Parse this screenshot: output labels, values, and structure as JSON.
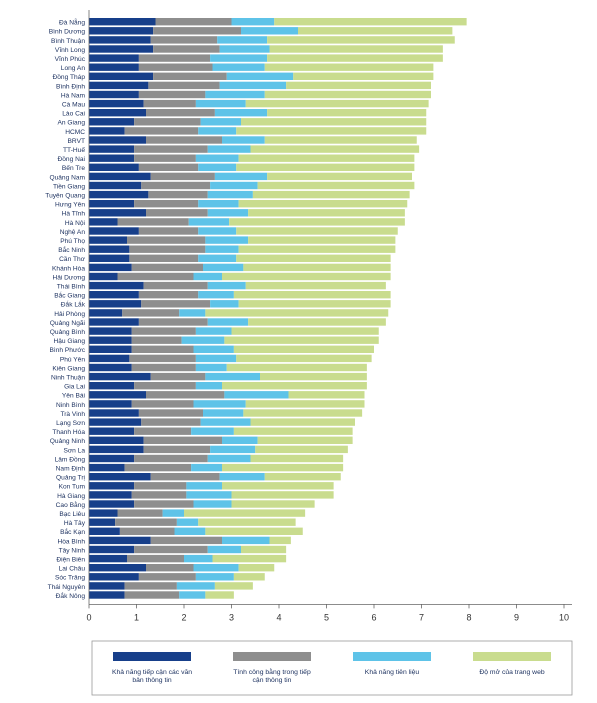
{
  "chart_data": {
    "type": "bar",
    "orientation": "horizontal",
    "stacked": true,
    "categories": [
      "Đà Nẵng",
      "Bình Dương",
      "Bình Thuận",
      "Vĩnh Long",
      "Vĩnh Phúc",
      "Long An",
      "Đồng Tháp",
      "Bình Định",
      "Hà Nam",
      "Cà Mau",
      "Lào Cai",
      "An Giang",
      "HCMC",
      "BRVT",
      "TT-Huế",
      "Đồng Nai",
      "Bến Tre",
      "Quảng Nam",
      "Tiền Giang",
      "Tuyên Quang",
      "Hưng Yên",
      "Hà Tĩnh",
      "Hà Nội",
      "Nghệ An",
      "Phú Thọ",
      "Bắc Ninh",
      "Cần Thơ",
      "Khánh Hòa",
      "Hải Dương",
      "Thái Bình",
      "Bắc Giang",
      "Đắk Lắk",
      "Hải Phòng",
      "Quảng Ngãi",
      "Quảng Bình",
      "Hậu Giang",
      "Bình Phước",
      "Phú Yên",
      "Kiên Giang",
      "Ninh Thuận",
      "Gia Lai",
      "Yên Bái",
      "Ninh Bình",
      "Trà Vinh",
      "Lạng Sơn",
      "Thanh Hóa",
      "Quảng Ninh",
      "Sơn La",
      "Lâm Đồng",
      "Nam Định",
      "Quảng Trị",
      "Kon Tum",
      "Hà Giang",
      "Cao Bằng",
      "Bạc Liêu",
      "Hà Tây",
      "Bắc Kạn",
      "Hòa Bình",
      "Tây Ninh",
      "Điện Biên",
      "Lai Châu",
      "Sóc Trăng",
      "Thái Nguyên",
      "Đắk Nông"
    ],
    "series": [
      {
        "name": "Khả năng tiếp cận các văn bản thông tin",
        "color": "#173f8a",
        "values": [
          1.4,
          1.35,
          1.3,
          1.35,
          1.05,
          1.05,
          1.35,
          1.25,
          1.05,
          1.15,
          1.2,
          0.95,
          0.75,
          1.2,
          0.95,
          0.95,
          1.05,
          1.3,
          1.1,
          1.25,
          0.95,
          1.2,
          0.6,
          1.05,
          0.8,
          0.85,
          0.85,
          0.9,
          0.6,
          1.15,
          1.05,
          1.1,
          0.7,
          1.05,
          0.9,
          0.9,
          0.9,
          0.85,
          0.9,
          1.3,
          0.95,
          1.2,
          0.9,
          1.05,
          1.1,
          0.95,
          1.15,
          1.15,
          0.95,
          0.75,
          1.3,
          0.95,
          0.9,
          0.95,
          0.6,
          0.55,
          0.65,
          1.3,
          0.95,
          0.8,
          1.2,
          1.05,
          0.75,
          0.75
        ]
      },
      {
        "name": "Tính công bằng trong tiếp cận thông tin",
        "color": "#8e8e8e",
        "values": [
          1.6,
          1.85,
          1.4,
          1.4,
          1.5,
          1.55,
          1.55,
          1.5,
          1.4,
          1.1,
          1.45,
          1.4,
          1.55,
          1.6,
          1.55,
          1.3,
          1.25,
          1.35,
          1.45,
          1.25,
          1.35,
          1.3,
          1.5,
          1.25,
          1.65,
          1.6,
          1.45,
          1.5,
          1.6,
          1.35,
          1.25,
          1.45,
          1.2,
          1.45,
          1.35,
          1.05,
          1.3,
          1.4,
          1.35,
          1.15,
          1.3,
          1.65,
          1.3,
          1.35,
          1.25,
          1.2,
          1.65,
          1.4,
          1.55,
          1.4,
          1.45,
          1.1,
          1.15,
          1.25,
          0.95,
          1.3,
          1.15,
          1.5,
          1.55,
          1.2,
          1.0,
          1.2,
          1.1,
          1.15
        ]
      },
      {
        "name": "Khả năng tiên liệu",
        "color": "#5ec3e8",
        "values": [
          0.9,
          1.2,
          1.05,
          1.05,
          1.2,
          1.1,
          1.4,
          1.4,
          1.25,
          1.05,
          1.1,
          0.85,
          0.8,
          0.9,
          0.9,
          0.9,
          0.8,
          1.1,
          1.0,
          0.95,
          0.85,
          0.85,
          0.85,
          0.8,
          0.9,
          0.7,
          0.8,
          0.85,
          0.6,
          0.8,
          0.75,
          0.6,
          0.55,
          0.85,
          0.75,
          0.9,
          0.85,
          0.85,
          0.65,
          1.15,
          0.55,
          1.35,
          1.1,
          0.85,
          1.05,
          0.9,
          0.75,
          0.95,
          0.9,
          0.65,
          0.95,
          0.75,
          0.95,
          0.8,
          0.45,
          0.45,
          0.65,
          1.0,
          0.7,
          0.6,
          0.95,
          0.8,
          0.8,
          0.55
        ]
      },
      {
        "name": "Độ mở của trang web",
        "color": "#c9dc8e",
        "values": [
          4.05,
          3.25,
          3.95,
          3.65,
          3.7,
          3.55,
          2.95,
          3.05,
          3.5,
          3.85,
          3.35,
          3.9,
          4.0,
          3.2,
          3.55,
          3.7,
          3.75,
          3.05,
          3.3,
          3.3,
          3.55,
          3.3,
          3.7,
          3.4,
          3.1,
          3.3,
          3.25,
          3.1,
          3.55,
          2.95,
          3.3,
          3.2,
          3.85,
          2.9,
          3.1,
          3.25,
          2.95,
          2.85,
          2.95,
          2.25,
          3.05,
          1.6,
          2.5,
          2.5,
          2.2,
          2.5,
          2.0,
          1.95,
          1.95,
          2.55,
          1.6,
          2.35,
          2.15,
          1.75,
          2.55,
          2.05,
          2.05,
          0.45,
          0.95,
          1.55,
          0.75,
          0.65,
          0.8,
          0.6
        ]
      }
    ],
    "xlim": [
      0,
      10
    ],
    "xticks": [
      "0",
      "1",
      "2",
      "3",
      "4",
      "5",
      "6",
      "7",
      "8",
      "9",
      "10"
    ],
    "grid": false,
    "legend_position": "bottom"
  }
}
